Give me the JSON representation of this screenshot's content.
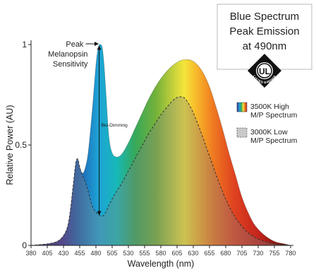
{
  "chart_data": {
    "type": "area",
    "xlabel": "Wavelength (nm)",
    "ylabel": "Relative Power (AU)",
    "xlim": [
      380,
      780
    ],
    "ylim": [
      0,
      1
    ],
    "xticks": [
      380,
      405,
      430,
      455,
      480,
      505,
      530,
      555,
      580,
      605,
      630,
      655,
      680,
      705,
      730,
      755,
      780
    ],
    "yticks": [
      {
        "value": 0,
        "label": "0"
      },
      {
        "value": 0.5,
        "label": "0.5"
      },
      {
        "value": 1,
        "label": "1"
      }
    ],
    "grid": false,
    "series": [
      {
        "name": "3500K High M/P Spectrum",
        "fill": "spectral rainbow",
        "x": [
          380,
          410,
          425,
          435,
          440,
          445,
          449,
          452,
          455,
          459,
          463,
          468,
          474,
          478,
          481,
          484,
          487,
          490,
          493,
          496,
          500,
          505,
          512,
          520,
          530,
          540,
          550,
          560,
          570,
          580,
          590,
          600,
          610,
          620,
          628,
          636,
          645,
          655,
          665,
          675,
          685,
          695,
          705,
          715,
          725,
          740,
          755,
          770,
          780
        ],
        "y": [
          0,
          0.01,
          0.03,
          0.08,
          0.16,
          0.3,
          0.41,
          0.43,
          0.39,
          0.36,
          0.38,
          0.46,
          0.66,
          0.82,
          0.93,
          0.99,
          1.0,
          0.98,
          0.88,
          0.73,
          0.54,
          0.46,
          0.44,
          0.455,
          0.51,
          0.58,
          0.65,
          0.72,
          0.78,
          0.83,
          0.87,
          0.9,
          0.92,
          0.925,
          0.92,
          0.9,
          0.86,
          0.79,
          0.69,
          0.58,
          0.46,
          0.35,
          0.24,
          0.16,
          0.1,
          0.05,
          0.02,
          0.008,
          0
        ]
      },
      {
        "name": "3000K Low M/P Spectrum",
        "fill": "gray dashed outline",
        "x": [
          380,
          410,
          425,
          435,
          440,
          445,
          449,
          452,
          455,
          459,
          463,
          468,
          472,
          476,
          480,
          484,
          488,
          492,
          496,
          500,
          510,
          520,
          530,
          540,
          550,
          560,
          570,
          580,
          590,
          598,
          604,
          610,
          616,
          622,
          630,
          640,
          650,
          660,
          670,
          680,
          690,
          700,
          712,
          725,
          740,
          755,
          770,
          780
        ],
        "y": [
          0,
          0.01,
          0.03,
          0.08,
          0.16,
          0.3,
          0.41,
          0.43,
          0.39,
          0.35,
          0.32,
          0.27,
          0.22,
          0.185,
          0.165,
          0.155,
          0.145,
          0.15,
          0.17,
          0.2,
          0.26,
          0.31,
          0.37,
          0.43,
          0.49,
          0.55,
          0.6,
          0.65,
          0.69,
          0.72,
          0.735,
          0.74,
          0.735,
          0.71,
          0.66,
          0.58,
          0.49,
          0.4,
          0.31,
          0.23,
          0.165,
          0.115,
          0.07,
          0.04,
          0.02,
          0.008,
          0.003,
          0
        ]
      }
    ],
    "annotations": [
      {
        "text": "Peak Melanopsin Sensitivity",
        "lines": [
          "Peak",
          "Melanopsin",
          "Sensitivity"
        ],
        "x": 487,
        "y": 1.0
      },
      {
        "text": "Bio-Dimming",
        "x": 485,
        "y": 0.5,
        "arrow_from": 1.0,
        "arrow_to": 0.145
      }
    ],
    "callout": {
      "lines": [
        "Blue Spectrum",
        "Peak Emission",
        "at 490nm"
      ]
    },
    "legend": {
      "placement": "right",
      "items": [
        {
          "lines": [
            "3500K High",
            "M/P Spectrum"
          ],
          "swatch": "rainbow"
        },
        {
          "lines": [
            "3000K Low",
            "M/P Spectrum"
          ],
          "swatch": "#c9c9c9"
        }
      ]
    },
    "badge": {
      "label": "UL",
      "ring_text": "LISTED E485956",
      "color": "#111111"
    }
  }
}
